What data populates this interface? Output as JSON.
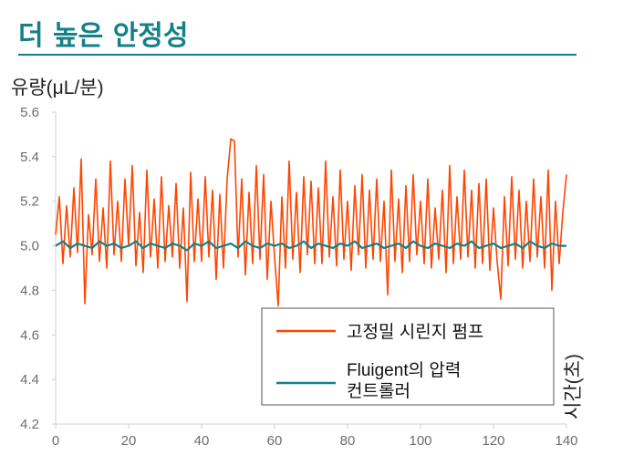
{
  "page": {
    "heading": "더 높은 안정성",
    "heading_color": "#13808a"
  },
  "chart_data": {
    "type": "line",
    "title": "",
    "xlabel": "시간(초)",
    "ylabel": "유량(μL/분)",
    "xlim": [
      0,
      140
    ],
    "ylim": [
      4.2,
      5.6
    ],
    "x_ticks": [
      "0",
      "20",
      "40",
      "60",
      "80",
      "100",
      "120",
      "140"
    ],
    "y_ticks": [
      "4.2",
      "4.4",
      "4.6",
      "4.8",
      "5.0",
      "5.2",
      "5.4",
      "5.6"
    ],
    "grid": false,
    "legend_position": "bottom-right",
    "series": [
      {
        "name": "고정밀 시린지 펌프",
        "color": "#ff4500",
        "x": [
          0,
          1,
          2,
          3,
          4,
          5,
          6,
          7,
          8,
          9,
          10,
          11,
          12,
          13,
          14,
          15,
          16,
          17,
          18,
          19,
          20,
          21,
          22,
          23,
          24,
          25,
          26,
          27,
          28,
          29,
          30,
          31,
          32,
          33,
          34,
          35,
          36,
          37,
          38,
          39,
          40,
          41,
          42,
          43,
          44,
          45,
          46,
          47,
          48,
          49,
          50,
          51,
          52,
          53,
          54,
          55,
          56,
          57,
          58,
          59,
          60,
          61,
          62,
          63,
          64,
          65,
          66,
          67,
          68,
          69,
          70,
          71,
          72,
          73,
          74,
          75,
          76,
          77,
          78,
          79,
          80,
          81,
          82,
          83,
          84,
          85,
          86,
          87,
          88,
          89,
          90,
          91,
          92,
          93,
          94,
          95,
          96,
          97,
          98,
          99,
          100,
          101,
          102,
          103,
          104,
          105,
          106,
          107,
          108,
          109,
          110,
          111,
          112,
          113,
          114,
          115,
          116,
          117,
          118,
          119,
          120,
          121,
          122,
          123,
          124,
          125,
          126,
          127,
          128,
          129,
          130,
          131,
          132,
          133,
          134,
          135,
          136,
          137,
          138,
          139,
          140
        ],
        "y": [
          5.05,
          5.22,
          4.92,
          5.18,
          4.95,
          5.26,
          4.97,
          5.39,
          4.74,
          5.14,
          4.96,
          5.3,
          4.93,
          5.17,
          4.9,
          5.38,
          4.96,
          5.2,
          4.93,
          5.3,
          5.0,
          5.36,
          4.91,
          5.15,
          4.88,
          5.34,
          4.95,
          5.21,
          4.9,
          5.31,
          4.93,
          5.18,
          4.95,
          5.28,
          4.9,
          5.17,
          4.75,
          5.33,
          4.93,
          5.21,
          4.93,
          5.31,
          4.95,
          5.25,
          4.85,
          5.23,
          4.9,
          5.3,
          5.48,
          5.47,
          4.95,
          5.3,
          4.87,
          5.24,
          4.92,
          5.36,
          4.94,
          5.32,
          4.85,
          5.2,
          4.95,
          4.73,
          5.22,
          4.9,
          5.38,
          4.94,
          5.24,
          4.88,
          5.31,
          4.96,
          5.29,
          4.92,
          5.26,
          4.92,
          5.38,
          4.95,
          5.22,
          4.91,
          5.34,
          4.94,
          5.2,
          4.89,
          5.27,
          4.96,
          5.32,
          4.9,
          5.25,
          4.94,
          5.3,
          4.93,
          5.2,
          4.78,
          5.34,
          4.93,
          5.21,
          4.88,
          5.27,
          4.93,
          5.32,
          4.96,
          5.2,
          4.92,
          5.3,
          4.9,
          5.17,
          4.94,
          5.25,
          4.88,
          5.36,
          4.92,
          5.22,
          4.94,
          5.34,
          4.95,
          5.25,
          4.9,
          5.28,
          4.92,
          5.3,
          4.89,
          5.17,
          4.93,
          4.76,
          5.22,
          4.91,
          5.31,
          4.94,
          5.25,
          4.9,
          5.2,
          4.93,
          5.3,
          4.95,
          5.22,
          4.9,
          5.34,
          4.8,
          5.2,
          4.92,
          5.15,
          5.32
        ]
      },
      {
        "name": "Fluigent의 압력\n컨트롤러",
        "color": "#13808a",
        "x": [
          0,
          2,
          4,
          6,
          8,
          10,
          12,
          14,
          16,
          18,
          20,
          22,
          24,
          26,
          28,
          30,
          32,
          34,
          36,
          38,
          40,
          42,
          44,
          46,
          48,
          50,
          52,
          54,
          56,
          58,
          60,
          62,
          64,
          66,
          68,
          70,
          72,
          74,
          76,
          78,
          80,
          82,
          84,
          86,
          88,
          90,
          92,
          94,
          96,
          98,
          100,
          102,
          104,
          106,
          108,
          110,
          112,
          114,
          116,
          118,
          120,
          122,
          124,
          126,
          128,
          130,
          132,
          134,
          136,
          138,
          140
        ],
        "y": [
          5.0,
          5.02,
          4.99,
          5.01,
          5.0,
          4.99,
          5.02,
          5.0,
          5.01,
          4.99,
          5.0,
          5.02,
          4.99,
          5.01,
          5.0,
          4.99,
          5.01,
          5.0,
          4.98,
          5.01,
          5.0,
          5.02,
          4.99,
          5.0,
          5.01,
          4.99,
          5.02,
          5.0,
          4.99,
          5.01,
          5.0,
          5.01,
          4.99,
          5.0,
          5.02,
          4.99,
          5.01,
          5.0,
          4.99,
          5.01,
          5.0,
          5.02,
          4.99,
          5.0,
          5.01,
          4.99,
          5.0,
          5.01,
          4.99,
          5.02,
          5.0,
          4.99,
          5.01,
          5.0,
          4.99,
          5.01,
          5.0,
          5.02,
          4.99,
          5.0,
          5.01,
          4.99,
          5.0,
          5.01,
          4.99,
          5.02,
          5.0,
          4.99,
          5.01,
          5.0,
          5.0
        ]
      }
    ]
  }
}
